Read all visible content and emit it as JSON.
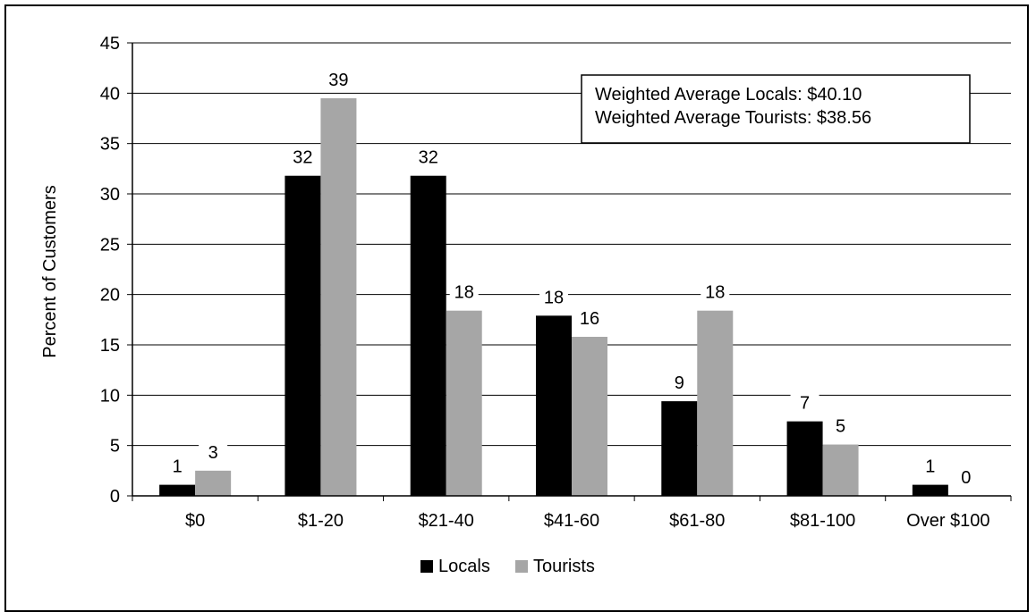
{
  "chart_data": {
    "type": "bar",
    "categories": [
      "$0",
      "$1-20",
      "$21-40",
      "$41-60",
      "$61-80",
      "$81-100",
      "Over $100"
    ],
    "series": [
      {
        "name": "Locals",
        "color": "#000000",
        "values": [
          1.1,
          31.8,
          31.8,
          17.9,
          9.4,
          7.4,
          1.1
        ],
        "labels": [
          "1",
          "32",
          "32",
          "18",
          "9",
          "7",
          "1"
        ]
      },
      {
        "name": "Tourists",
        "color": "#a6a6a6",
        "values": [
          2.5,
          39.5,
          18.4,
          15.8,
          18.4,
          5.1,
          0
        ],
        "labels": [
          "3",
          "39",
          "18",
          "16",
          "18",
          "5",
          "0"
        ]
      }
    ],
    "ylabel": "Percent of Customers",
    "xlabel": "",
    "ylim": [
      0,
      45
    ],
    "yticks": [
      "0",
      "5",
      "10",
      "15",
      "20",
      "25",
      "30",
      "35",
      "40",
      "45"
    ],
    "grid": true,
    "legend_position": "bottom",
    "annotation": [
      "Weighted Average Locals: $40.10",
      "Weighted Average Tourists: $38.56"
    ]
  }
}
